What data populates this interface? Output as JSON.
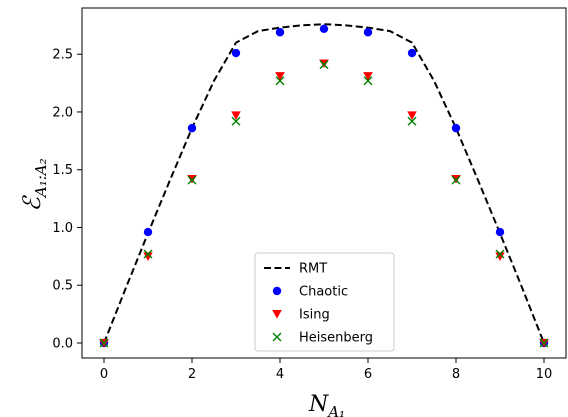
{
  "chart_data": {
    "type": "scatter",
    "title": "",
    "xlabel": "N_{A_1}",
    "ylabel": "ℰ_{A_1:A_2}",
    "xlabel_main": "N",
    "xlabel_sub": "A₁",
    "ylabel_main": "ℰ",
    "ylabel_sub": "A₁:A₂",
    "xlim": [
      -0.5,
      10.5
    ],
    "ylim": [
      -0.13,
      2.9
    ],
    "xticks": [
      0,
      2,
      4,
      6,
      8,
      10
    ],
    "yticks": [
      0.0,
      0.5,
      1.0,
      1.5,
      2.0,
      2.5
    ],
    "xtick_labels": [
      "0",
      "2",
      "4",
      "6",
      "8",
      "10"
    ],
    "ytick_labels": [
      "0.0",
      "0.5",
      "1.0",
      "1.5",
      "2.0",
      "2.5"
    ],
    "grid": false,
    "legend_position": "bottom-center",
    "series": [
      {
        "name": "RMT",
        "style": "dashed-line",
        "color": "#000000",
        "x": [
          0,
          0.5,
          1,
          1.5,
          2,
          2.5,
          3,
          3.5,
          4,
          4.5,
          5,
          5.5,
          6,
          6.5,
          7,
          7.5,
          8,
          8.5,
          9,
          9.5,
          10
        ],
        "y": [
          0.0,
          0.48,
          0.95,
          1.41,
          1.86,
          2.27,
          2.6,
          2.7,
          2.73,
          2.75,
          2.76,
          2.75,
          2.73,
          2.7,
          2.6,
          2.27,
          1.86,
          1.41,
          0.95,
          0.48,
          0.0
        ]
      },
      {
        "name": "Chaotic",
        "style": "circle",
        "color": "#0000ff",
        "x": [
          0,
          1,
          2,
          3,
          4,
          5,
          6,
          7,
          8,
          9,
          10
        ],
        "y": [
          0.0,
          0.96,
          1.86,
          2.51,
          2.69,
          2.72,
          2.69,
          2.51,
          1.86,
          0.96,
          0.0
        ]
      },
      {
        "name": "Ising",
        "style": "triangle-down",
        "color": "#ff0000",
        "x": [
          0,
          1,
          2,
          3,
          4,
          5,
          6,
          7,
          8,
          9,
          10
        ],
        "y": [
          0.0,
          0.75,
          1.42,
          1.97,
          2.31,
          2.42,
          2.31,
          1.97,
          1.42,
          0.75,
          0.0
        ]
      },
      {
        "name": "Heisenberg",
        "style": "x",
        "color": "#008000",
        "x": [
          0,
          1,
          2,
          3,
          4,
          5,
          6,
          7,
          8,
          9,
          10
        ],
        "y": [
          0.0,
          0.77,
          1.41,
          1.92,
          2.27,
          2.41,
          2.27,
          1.92,
          1.41,
          0.77,
          0.0
        ]
      }
    ]
  }
}
